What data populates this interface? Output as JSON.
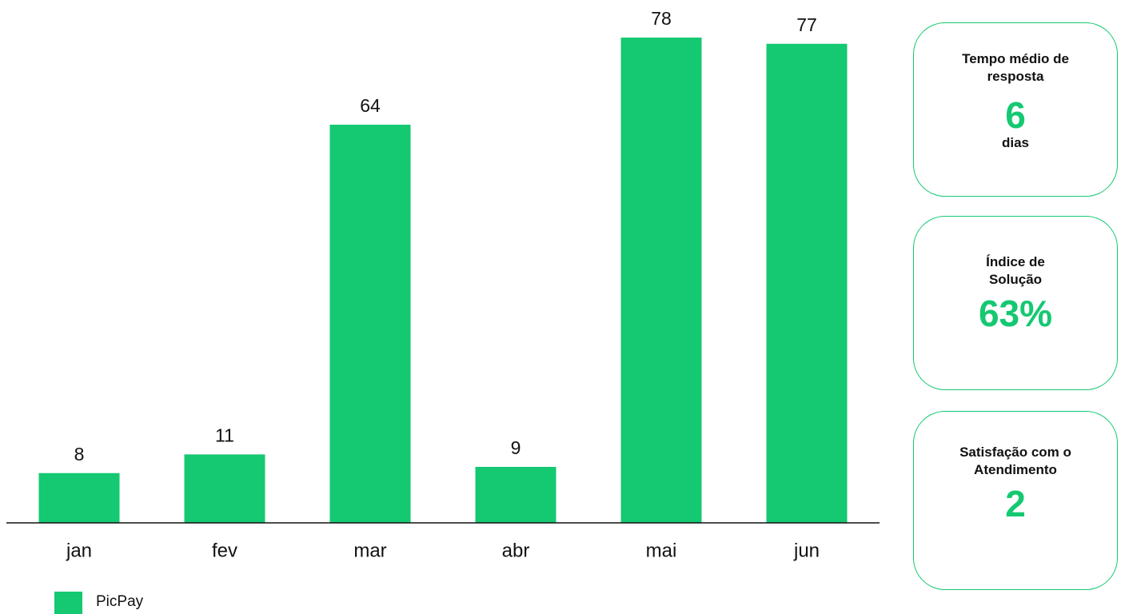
{
  "chart_data": {
    "type": "bar",
    "categories": [
      "jan",
      "fev",
      "mar",
      "abr",
      "mai",
      "jun"
    ],
    "series": [
      {
        "name": "PicPay",
        "color": "#15c872",
        "values": [
          8,
          11,
          64,
          9,
          78,
          77
        ]
      }
    ]
  },
  "cards": [
    {
      "title": "Tempo médio de resposta",
      "value": "6",
      "unit": "dias"
    },
    {
      "title": "Índice de Solução",
      "value": "63%"
    },
    {
      "title": "Satisfação com o Atendimento",
      "value": "2"
    }
  ]
}
